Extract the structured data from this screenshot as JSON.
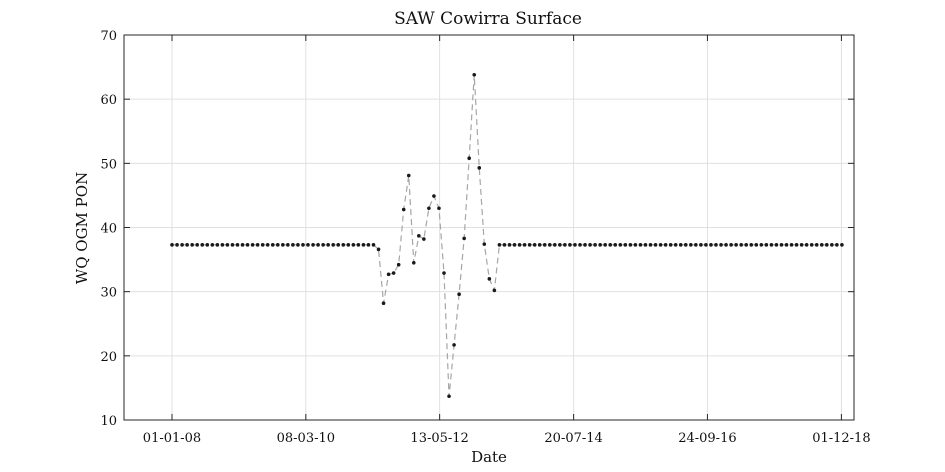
{
  "chart_data": {
    "type": "line",
    "title": "SAW Cowirra Surface",
    "xlabel": "Date",
    "ylabel": "WQ OGM PON",
    "ylim": [
      10,
      70
    ],
    "yticks": [
      10,
      20,
      30,
      40,
      50,
      60,
      70
    ],
    "xlim": [
      "2007-03-21",
      "2019-02-14"
    ],
    "xticks": [
      {
        "date": "2008-01-01",
        "label": "01-01-08"
      },
      {
        "date": "2010-03-08",
        "label": "08-03-10"
      },
      {
        "date": "2012-05-13",
        "label": "13-05-12"
      },
      {
        "date": "2014-07-20",
        "label": "20-07-14"
      },
      {
        "date": "2016-09-24",
        "label": "24-09-16"
      },
      {
        "date": "2018-12-01",
        "label": "01-12-18"
      }
    ],
    "grid": true,
    "legend": "none",
    "colors": {
      "line": "#a6a6a6",
      "marker": "#1a1a1a",
      "grid": "#e0e0e0",
      "axis": "#262626"
    },
    "line_style": "dashed",
    "x": [
      "2008-01-01",
      "2008-01-31",
      "2008-03-01",
      "2008-03-31",
      "2008-04-30",
      "2008-05-30",
      "2008-06-29",
      "2008-07-29",
      "2008-08-28",
      "2008-09-27",
      "2008-10-27",
      "2008-11-26",
      "2008-12-26",
      "2009-01-25",
      "2009-02-24",
      "2009-03-26",
      "2009-04-25",
      "2009-05-25",
      "2009-06-24",
      "2009-07-24",
      "2009-08-23",
      "2009-09-22",
      "2009-10-22",
      "2009-11-21",
      "2009-12-21",
      "2010-01-20",
      "2010-02-19",
      "2010-03-21",
      "2010-04-20",
      "2010-05-20",
      "2010-06-19",
      "2010-07-19",
      "2010-08-18",
      "2010-09-17",
      "2010-10-17",
      "2010-11-16",
      "2010-12-16",
      "2011-01-15",
      "2011-02-14",
      "2011-03-16",
      "2011-04-15",
      "2011-05-15",
      "2011-06-14",
      "2011-07-14",
      "2011-08-13",
      "2011-09-12",
      "2011-10-12",
      "2011-11-11",
      "2011-12-11",
      "2012-01-10",
      "2012-02-09",
      "2012-03-10",
      "2012-04-09",
      "2012-05-09",
      "2012-06-08",
      "2012-07-08",
      "2012-08-07",
      "2012-09-06",
      "2012-10-06",
      "2012-11-05",
      "2012-12-05",
      "2013-01-04",
      "2013-02-03",
      "2013-03-05",
      "2013-04-04",
      "2013-05-04",
      "2013-06-03",
      "2013-07-03",
      "2013-08-02",
      "2013-09-01",
      "2013-10-01",
      "2013-10-31",
      "2013-11-30",
      "2013-12-30",
      "2014-01-29",
      "2014-02-28",
      "2014-03-30",
      "2014-04-29",
      "2014-05-29",
      "2014-06-28",
      "2014-07-28",
      "2014-08-27",
      "2014-09-26",
      "2014-10-26",
      "2014-11-25",
      "2014-12-25",
      "2015-01-24",
      "2015-02-23",
      "2015-03-25",
      "2015-04-24",
      "2015-05-24",
      "2015-06-23",
      "2015-07-23",
      "2015-08-22",
      "2015-09-21",
      "2015-10-21",
      "2015-11-20",
      "2015-12-20",
      "2016-01-19",
      "2016-02-18",
      "2016-03-19",
      "2016-04-18",
      "2016-05-18",
      "2016-06-17",
      "2016-07-17",
      "2016-08-16",
      "2016-09-15",
      "2016-10-15",
      "2016-11-14",
      "2016-12-14",
      "2017-01-13",
      "2017-02-12",
      "2017-03-14",
      "2017-04-13",
      "2017-05-13",
      "2017-06-12",
      "2017-07-12",
      "2017-08-11",
      "2017-09-10",
      "2017-10-10",
      "2017-11-09",
      "2017-12-09",
      "2018-01-08",
      "2018-02-07",
      "2018-03-09",
      "2018-04-08",
      "2018-05-08",
      "2018-06-07",
      "2018-07-07",
      "2018-08-06",
      "2018-09-05",
      "2018-10-05",
      "2018-11-04",
      "2018-12-04"
    ],
    "y": [
      37.3,
      37.3,
      37.3,
      37.3,
      37.3,
      37.3,
      37.3,
      37.3,
      37.3,
      37.3,
      37.3,
      37.3,
      37.3,
      37.3,
      37.3,
      37.3,
      37.3,
      37.3,
      37.3,
      37.3,
      37.3,
      37.3,
      37.3,
      37.3,
      37.3,
      37.3,
      37.3,
      37.3,
      37.3,
      37.3,
      37.3,
      37.3,
      37.3,
      37.3,
      37.3,
      37.3,
      37.3,
      37.3,
      37.3,
      37.3,
      37.3,
      36.6,
      28.2,
      32.7,
      32.9,
      34.2,
      42.8,
      48.1,
      34.5,
      38.7,
      38.2,
      43.0,
      44.9,
      43.0,
      32.9,
      13.7,
      21.7,
      29.6,
      38.3,
      50.8,
      63.8,
      49.3,
      37.4,
      32.0,
      30.2,
      37.3,
      37.3,
      37.3,
      37.3,
      37.3,
      37.3,
      37.3,
      37.3,
      37.3,
      37.3,
      37.3,
      37.3,
      37.3,
      37.3,
      37.3,
      37.3,
      37.3,
      37.3,
      37.3,
      37.3,
      37.3,
      37.3,
      37.3,
      37.3,
      37.3,
      37.3,
      37.3,
      37.3,
      37.3,
      37.3,
      37.3,
      37.3,
      37.3,
      37.3,
      37.3,
      37.3,
      37.3,
      37.3,
      37.3,
      37.3,
      37.3,
      37.3,
      37.3,
      37.3,
      37.3,
      37.3,
      37.3,
      37.3,
      37.3,
      37.3,
      37.3,
      37.3,
      37.3,
      37.3,
      37.3,
      37.3,
      37.3,
      37.3,
      37.3,
      37.3,
      37.3,
      37.3,
      37.3,
      37.3,
      37.3,
      37.3,
      37.3,
      37.3,
      37.3
    ]
  }
}
